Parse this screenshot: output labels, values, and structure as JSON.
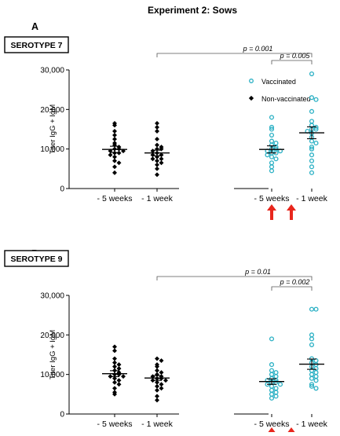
{
  "figure": {
    "title": "Experiment 2: Sows",
    "legend": [
      {
        "label": "Vaccinated",
        "color": "#2ab0c4",
        "marker": "open-circle"
      },
      {
        "label": "Non-vaccinated",
        "color": "#000000",
        "marker": "filled-diamond"
      }
    ],
    "colors": {
      "vaccinated": "#2ab0c4",
      "nonvaccinated": "#000000",
      "arrow": "#e8261c"
    }
  },
  "chart_data": [
    {
      "type": "scatter",
      "panel": "A",
      "serotype": "SEROTYPE 7",
      "ylabel": "Titer IgG + IgM",
      "ylim": [
        0,
        30000
      ],
      "yticks": [
        "0",
        "10,000",
        "20,000",
        "30,000"
      ],
      "categories": [
        "- 5 weeks",
        "- 1 week",
        "- 5 weeks",
        "- 1 week"
      ],
      "groups": [
        {
          "series": "Non-vaccinated",
          "category": "- 5 weeks",
          "mean": 9900,
          "sem": 800,
          "values": [
            16500,
            16000,
            14500,
            13500,
            12500,
            11500,
            11000,
            10500,
            10000,
            10000,
            9500,
            9500,
            9000,
            9000,
            8500,
            8000,
            7000,
            6500,
            5500,
            4000
          ]
        },
        {
          "series": "Non-vaccinated",
          "category": "- 1 week",
          "mean": 9000,
          "sem": 700,
          "values": [
            16500,
            15500,
            14500,
            12500,
            11000,
            10500,
            10000,
            10000,
            9500,
            9000,
            8500,
            8500,
            8000,
            7500,
            7500,
            7000,
            6500,
            6000,
            5000,
            3500
          ]
        },
        {
          "series": "Vaccinated",
          "category": "- 5 weeks",
          "mean": 9900,
          "sem": 900,
          "values": [
            18000,
            15500,
            15000,
            13500,
            12000,
            11500,
            11000,
            10500,
            10000,
            10000,
            9500,
            9500,
            9000,
            9000,
            8500,
            8000,
            7500,
            6500,
            5500,
            4500
          ]
        },
        {
          "series": "Vaccinated",
          "category": "- 1 week",
          "mean": 14100,
          "sem": 1500,
          "values": [
            29000,
            23000,
            22500,
            19500,
            17000,
            16000,
            15500,
            15000,
            15000,
            14500,
            14000,
            13000,
            12000,
            11500,
            10500,
            10000,
            8500,
            7000,
            5500,
            4000
          ]
        }
      ],
      "comparisons": [
        {
          "label": "p = 0.001",
          "from_group": 1,
          "to_group": 3
        },
        {
          "label": "p = 0.005",
          "from_group": 2,
          "to_group": 3
        }
      ],
      "arrows_under_groups": [
        2,
        3
      ]
    },
    {
      "type": "scatter",
      "panel": "B",
      "serotype": "SEROTYPE 9",
      "ylabel": "Titer IgG + IgM",
      "ylim": [
        0,
        30000
      ],
      "yticks": [
        "0",
        "10,000",
        "20,000",
        "30,000"
      ],
      "categories": [
        "- 5 weeks",
        "- 1 week",
        "- 5 weeks",
        "- 1 week"
      ],
      "groups": [
        {
          "series": "Non-vaccinated",
          "category": "- 5 weeks",
          "mean": 10200,
          "sem": 750,
          "values": [
            17000,
            16000,
            14000,
            13000,
            12500,
            12000,
            11500,
            11000,
            10500,
            10000,
            10000,
            9500,
            9500,
            9000,
            8500,
            8000,
            7500,
            6500,
            5500,
            5000
          ]
        },
        {
          "series": "Non-vaccinated",
          "category": "- 1 week",
          "mean": 9100,
          "sem": 600,
          "values": [
            14000,
            13500,
            12500,
            12000,
            11000,
            10500,
            10000,
            9500,
            9500,
            9000,
            9000,
            8500,
            8500,
            8000,
            7500,
            7000,
            6500,
            6000,
            4500,
            3500
          ]
        },
        {
          "series": "Vaccinated",
          "category": "- 5 weeks",
          "mean": 8200,
          "sem": 700,
          "values": [
            19000,
            12500,
            11000,
            10500,
            10000,
            9500,
            9000,
            8500,
            8500,
            8000,
            8000,
            7500,
            7500,
            7000,
            6500,
            6000,
            5500,
            5000,
            4500,
            4000
          ]
        },
        {
          "series": "Vaccinated",
          "category": "- 1 week",
          "mean": 12600,
          "sem": 1300,
          "values": [
            26500,
            26500,
            20000,
            19000,
            17500,
            14000,
            13500,
            13000,
            12500,
            12000,
            11500,
            11000,
            10500,
            10000,
            9500,
            9000,
            8500,
            7500,
            7000,
            6500
          ]
        }
      ],
      "comparisons": [
        {
          "label": "p = 0.01",
          "from_group": 1,
          "to_group": 3
        },
        {
          "label": "p = 0.002",
          "from_group": 2,
          "to_group": 3
        }
      ],
      "arrows_under_groups": [
        2,
        3
      ]
    }
  ]
}
